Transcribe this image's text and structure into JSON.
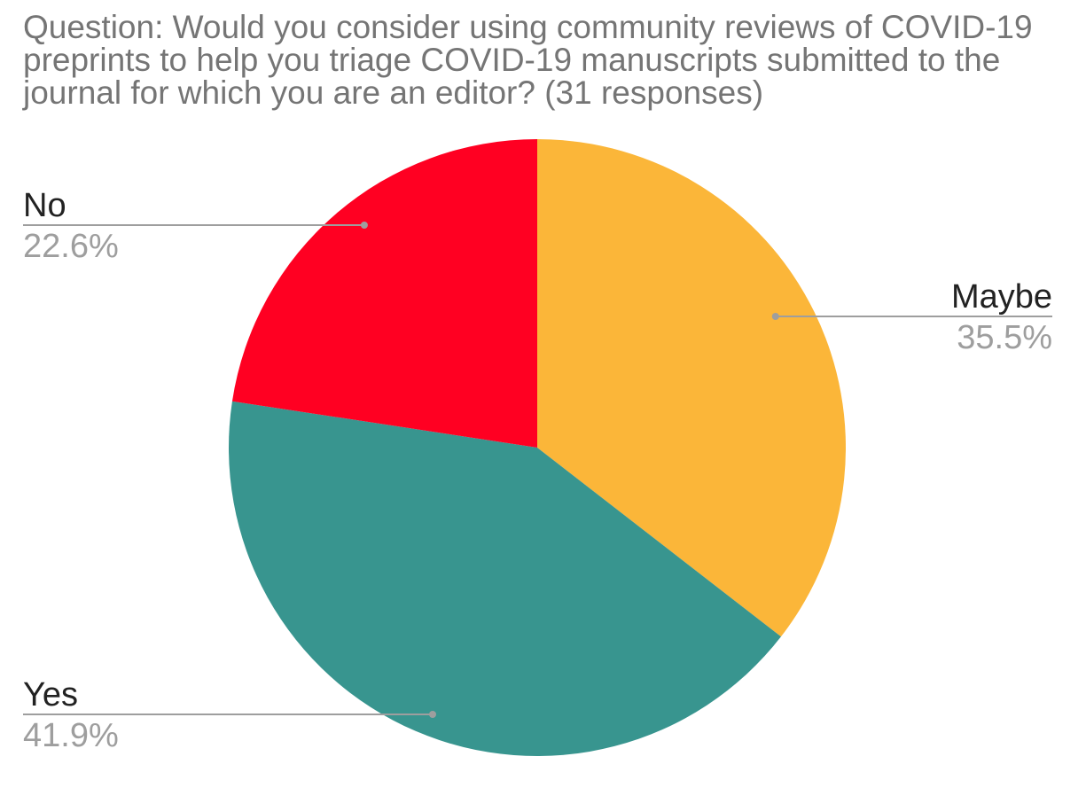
{
  "chart_data": {
    "type": "pie",
    "title": "Question: Would you consider using community reviews of COVID-19 preprints to help you triage COVID-19 manuscripts submitted to the journal for which you are an editor? (31 responses)",
    "legend": "none",
    "labels_position": "outside-with-leader-lines",
    "slices": [
      {
        "label": "Maybe",
        "value": 35.5,
        "display": "35.5%",
        "color": "#FBB639"
      },
      {
        "label": "Yes",
        "value": 41.9,
        "display": "41.9%",
        "color": "#38958F"
      },
      {
        "label": "No",
        "value": 22.6,
        "display": "22.6%",
        "color": "#FF0022"
      }
    ]
  }
}
